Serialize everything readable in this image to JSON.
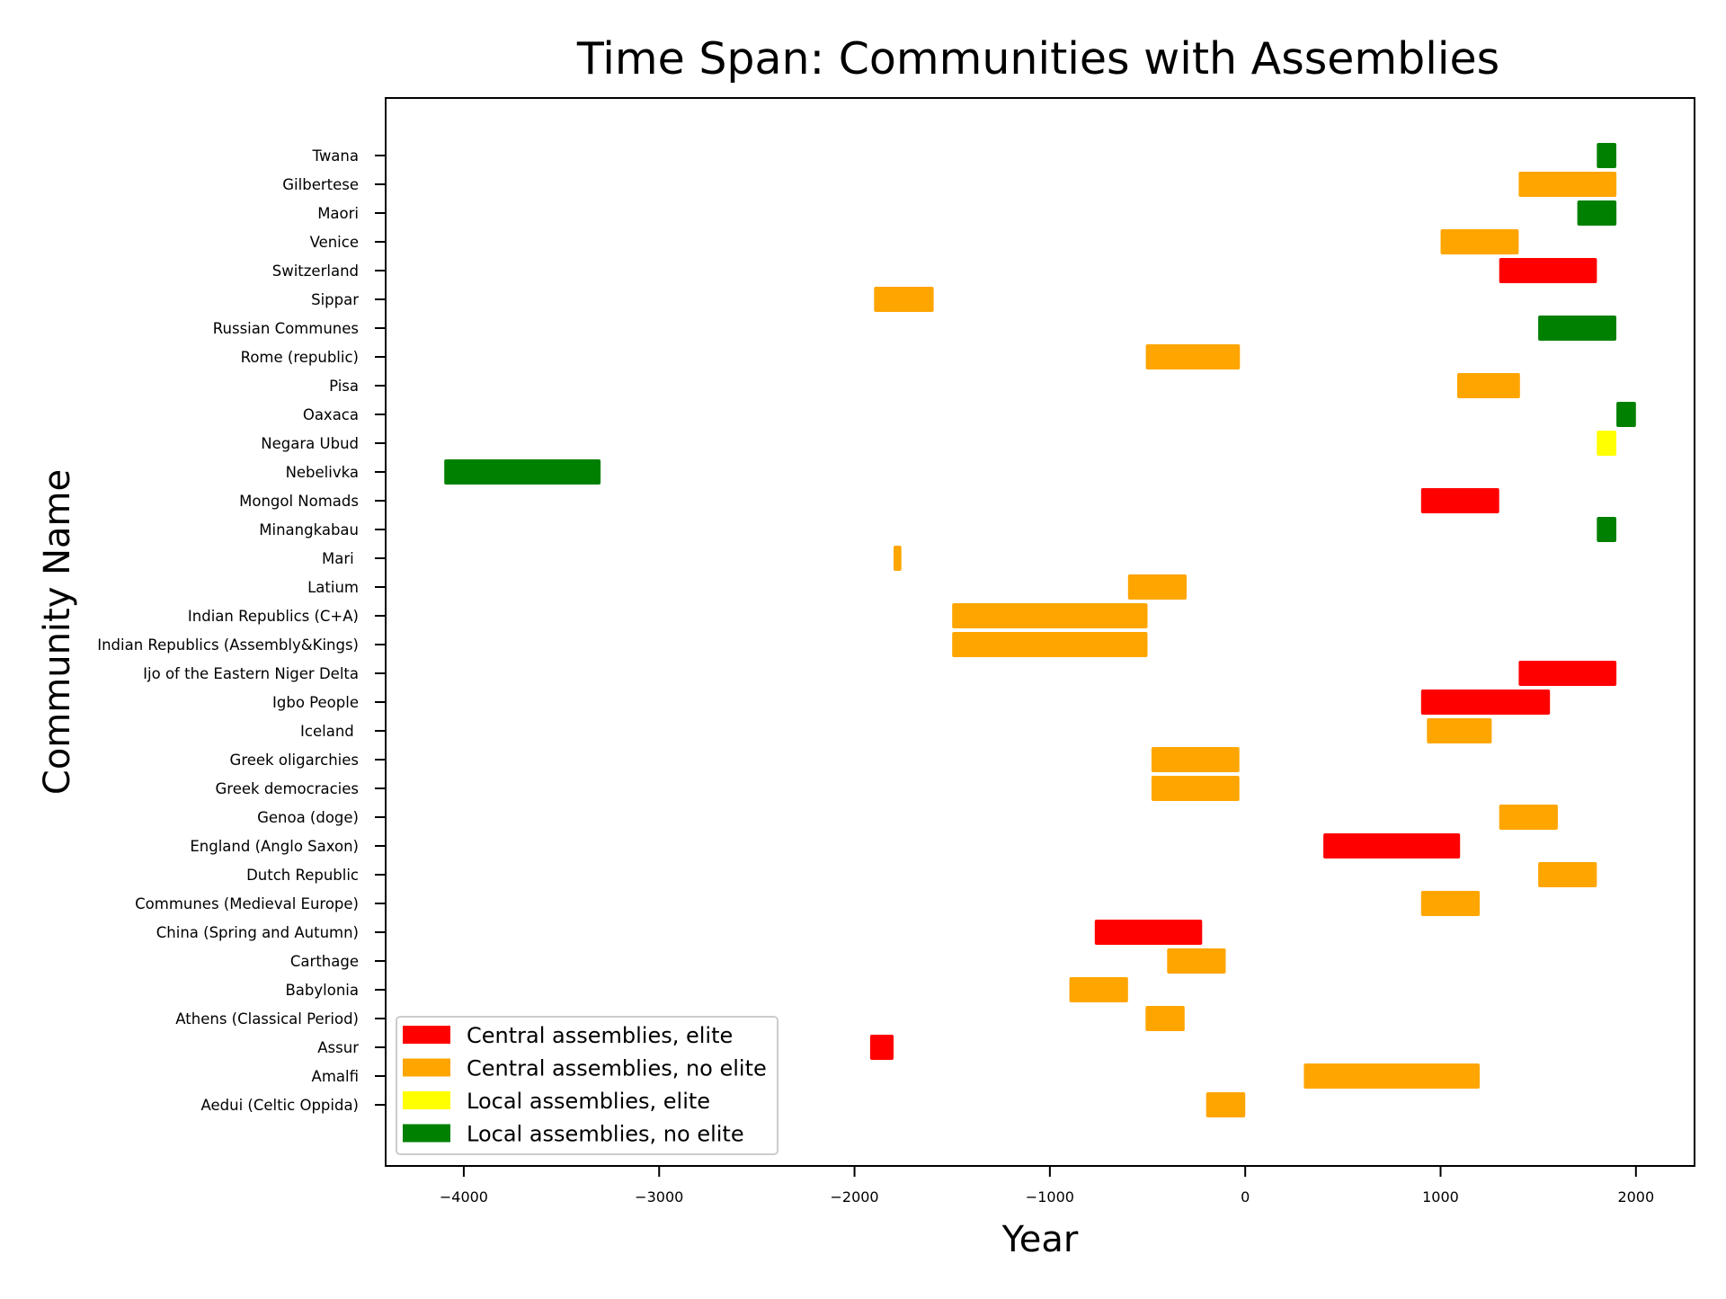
{
  "chart_data": {
    "type": "bar",
    "orientation": "horizontal",
    "title": "Time Span: Communities with Assemblies",
    "xlabel": "Year",
    "ylabel": "Community Name",
    "xlim": [
      -4400,
      2300
    ],
    "xticks": [
      -4000,
      -3000,
      -2000,
      -1000,
      0,
      1000,
      2000
    ],
    "xtick_labels": [
      "−4000",
      "−3000",
      "−2000",
      "−1000",
      "0",
      "1000",
      "2000"
    ],
    "grid": false,
    "legend_position": "lower-left",
    "categories": {
      "central_elite": {
        "label": "Central assemblies, elite",
        "color": "#ff0000"
      },
      "central_no_elite": {
        "label": "Central assemblies, no elite",
        "color": "#ffa500"
      },
      "local_elite": {
        "label": "Local assemblies, elite",
        "color": "#ffff00"
      },
      "local_no_elite": {
        "label": "Local assemblies, no elite",
        "color": "#008000"
      }
    },
    "legend_order": [
      "central_elite",
      "central_no_elite",
      "local_elite",
      "local_no_elite"
    ],
    "rows": [
      {
        "name": "Aedui (Celtic Oppida)",
        "start": -200,
        "end": 0,
        "category": "central_no_elite"
      },
      {
        "name": "Amalfi",
        "start": 300,
        "end": 1200,
        "category": "central_no_elite"
      },
      {
        "name": "Assur",
        "start": -1920,
        "end": -1800,
        "category": "central_elite"
      },
      {
        "name": "Athens (Classical Period)",
        "start": -510,
        "end": -310,
        "category": "central_no_elite"
      },
      {
        "name": "Babylonia",
        "start": -900,
        "end": -600,
        "category": "central_no_elite"
      },
      {
        "name": "Carthage",
        "start": -400,
        "end": -100,
        "category": "central_no_elite"
      },
      {
        "name": "China (Spring and Autumn)",
        "start": -770,
        "end": -220,
        "category": "central_elite"
      },
      {
        "name": "Communes (Medieval Europe)",
        "start": 900,
        "end": 1200,
        "category": "central_no_elite"
      },
      {
        "name": "Dutch Republic",
        "start": 1500,
        "end": 1800,
        "category": "central_no_elite"
      },
      {
        "name": "England (Anglo Saxon)",
        "start": 400,
        "end": 1100,
        "category": "central_elite"
      },
      {
        "name": "Genoa (doge)",
        "start": 1300,
        "end": 1600,
        "category": "central_no_elite"
      },
      {
        "name": "Greek democracies",
        "start": -480,
        "end": -30,
        "category": "central_no_elite"
      },
      {
        "name": "Greek oligarchies",
        "start": -480,
        "end": -30,
        "category": "central_no_elite"
      },
      {
        "name": "Iceland ",
        "start": 930,
        "end": 1262,
        "category": "central_no_elite"
      },
      {
        "name": "Igbo People",
        "start": 900,
        "end": 1560,
        "category": "central_elite"
      },
      {
        "name": "Ijo of the Eastern Niger Delta",
        "start": 1400,
        "end": 1900,
        "category": "central_elite"
      },
      {
        "name": "Indian Republics (Assembly&Kings)",
        "start": -1500,
        "end": -500,
        "category": "central_no_elite"
      },
      {
        "name": "Indian Republics (C+A)",
        "start": -1500,
        "end": -500,
        "category": "central_no_elite"
      },
      {
        "name": "Latium",
        "start": -600,
        "end": -300,
        "category": "central_no_elite"
      },
      {
        "name": "Mari ",
        "start": -1800,
        "end": -1760,
        "category": "central_no_elite"
      },
      {
        "name": "Minangkabau",
        "start": 1800,
        "end": 1900,
        "category": "local_no_elite"
      },
      {
        "name": "Mongol Nomads",
        "start": 900,
        "end": 1300,
        "category": "central_elite"
      },
      {
        "name": "Nebelivka",
        "start": -4100,
        "end": -3300,
        "category": "local_no_elite"
      },
      {
        "name": "Negara Ubud",
        "start": 1800,
        "end": 1900,
        "category": "local_elite"
      },
      {
        "name": "Oaxaca",
        "start": 1900,
        "end": 2000,
        "category": "local_no_elite"
      },
      {
        "name": "Pisa",
        "start": 1085,
        "end": 1406,
        "category": "central_no_elite"
      },
      {
        "name": "Rome (republic)",
        "start": -509,
        "end": -27,
        "category": "central_no_elite"
      },
      {
        "name": "Russian Communes",
        "start": 1500,
        "end": 1900,
        "category": "local_no_elite"
      },
      {
        "name": "Sippar",
        "start": -1900,
        "end": -1595,
        "category": "central_no_elite"
      },
      {
        "name": "Switzerland",
        "start": 1300,
        "end": 1800,
        "category": "central_elite"
      },
      {
        "name": "Venice",
        "start": 1000,
        "end": 1400,
        "category": "central_no_elite"
      },
      {
        "name": "Maori",
        "start": 1700,
        "end": 1900,
        "category": "local_no_elite"
      },
      {
        "name": "Gilbertese",
        "start": 1400,
        "end": 1900,
        "category": "central_no_elite"
      },
      {
        "name": "Twana",
        "start": 1800,
        "end": 1900,
        "category": "local_no_elite"
      }
    ]
  }
}
